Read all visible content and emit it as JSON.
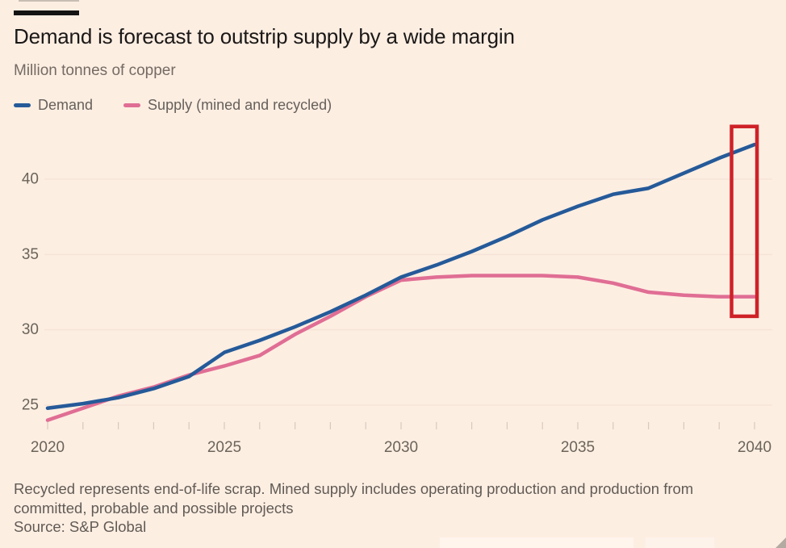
{
  "header": {
    "title": "Demand is forecast to outstrip supply by a wide margin",
    "subtitle": "Million tonnes of copper"
  },
  "legend": [
    {
      "label": "Demand",
      "color": "#255a99"
    },
    {
      "label": "Supply (mined and recycled)",
      "color": "#e06e94"
    }
  ],
  "chart_data": {
    "type": "line",
    "title": "Demand is forecast to outstrip supply by a wide margin",
    "ylabel_unit": "Million tonnes of copper",
    "x": [
      2020,
      2021,
      2022,
      2023,
      2024,
      2025,
      2026,
      2027,
      2028,
      2029,
      2030,
      2031,
      2032,
      2033,
      2034,
      2035,
      2036,
      2037,
      2038,
      2039,
      2040
    ],
    "series": [
      {
        "name": "Demand",
        "color": "#255a99",
        "values": [
          24.8,
          25.1,
          25.5,
          26.1,
          26.9,
          28.5,
          29.3,
          30.2,
          31.2,
          32.3,
          33.5,
          34.3,
          35.2,
          36.2,
          37.3,
          38.2,
          39.0,
          39.4,
          40.4,
          41.4,
          42.3
        ]
      },
      {
        "name": "Supply (mined and recycled)",
        "color": "#e06e94",
        "values": [
          24.0,
          24.8,
          25.6,
          26.2,
          27.0,
          27.6,
          28.3,
          29.7,
          30.9,
          32.2,
          33.3,
          33.5,
          33.6,
          33.6,
          33.6,
          33.5,
          33.1,
          32.5,
          32.3,
          32.2,
          32.2
        ]
      }
    ],
    "xticks": [
      2020,
      2025,
      2030,
      2035,
      2040
    ],
    "yticks": [
      25,
      30,
      35,
      40
    ],
    "xlim": [
      2020,
      2040
    ],
    "ylim": [
      23.3,
      43.8
    ],
    "grid": "horizontal-faint",
    "legend_position": "top-left",
    "annotation": {
      "type": "highlight-rect",
      "color": "#cf2127",
      "x_year_left": 2039.35,
      "x_year_right": 2040.07,
      "value_top": 43.5,
      "value_bottom": 30.9
    }
  },
  "footer": {
    "note": "Recycled represents end-of-life scrap. Mined supply includes operating production and production from committed, probable and possible projects",
    "source": "Source: S&P Global"
  },
  "colors": {
    "background": "#fdeee2",
    "title_text": "#1a1817",
    "muted_text": "#66605b",
    "grid": "#f5e3d6",
    "tick": "#d8c9bc",
    "axis_label": "#6b6459",
    "demand_line": "#255a99",
    "supply_line": "#e06e94",
    "highlight": "#cf2127"
  }
}
